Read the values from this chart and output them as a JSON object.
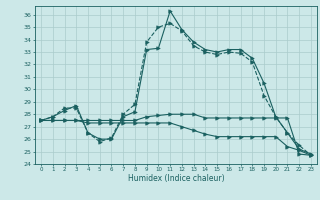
{
  "xlabel": "Humidex (Indice chaleur)",
  "bg_color": "#cce8e8",
  "grid_color": "#aacccc",
  "line_color": "#1a6060",
  "xlim": [
    -0.5,
    23.5
  ],
  "ylim": [
    24,
    36.7
  ],
  "yticks": [
    24,
    25,
    26,
    27,
    28,
    29,
    30,
    31,
    32,
    33,
    34,
    35,
    36
  ],
  "xticks": [
    0,
    1,
    2,
    3,
    4,
    5,
    6,
    7,
    8,
    9,
    10,
    11,
    12,
    13,
    14,
    15,
    16,
    17,
    18,
    19,
    20,
    21,
    22,
    23
  ],
  "series1_x": [
    0,
    1,
    2,
    3,
    4,
    5,
    6,
    7,
    8,
    9,
    10,
    11,
    12,
    13,
    14,
    15,
    16,
    17,
    18,
    19,
    20,
    21,
    22,
    23
  ],
  "series1_y": [
    27.5,
    27.8,
    28.3,
    28.7,
    26.5,
    26.0,
    26.0,
    27.8,
    28.2,
    33.2,
    33.3,
    36.3,
    34.8,
    33.8,
    33.2,
    33.0,
    33.2,
    33.2,
    32.5,
    30.5,
    27.8,
    26.5,
    25.2,
    24.8
  ],
  "series2_x": [
    0,
    1,
    2,
    3,
    4,
    5,
    6,
    7,
    8,
    9,
    10,
    11,
    12,
    13,
    14,
    15,
    16,
    17,
    18,
    19,
    20,
    21,
    22,
    23
  ],
  "series2_y": [
    27.5,
    27.8,
    28.5,
    28.5,
    26.5,
    25.8,
    26.1,
    28.0,
    28.8,
    33.8,
    35.0,
    35.3,
    34.7,
    33.5,
    33.0,
    32.8,
    33.0,
    32.9,
    32.2,
    29.5,
    27.8,
    26.5,
    25.5,
    24.7
  ],
  "series3_x": [
    0,
    1,
    2,
    3,
    4,
    5,
    6,
    7,
    8,
    9,
    10,
    11,
    12,
    13,
    14,
    15,
    16,
    17,
    18,
    19,
    20,
    21,
    22,
    23
  ],
  "series3_y": [
    27.5,
    27.5,
    27.5,
    27.5,
    27.5,
    27.5,
    27.5,
    27.5,
    27.5,
    27.8,
    27.9,
    28.0,
    28.0,
    28.0,
    27.7,
    27.7,
    27.7,
    27.7,
    27.7,
    27.7,
    27.7,
    27.7,
    24.8,
    24.7
  ],
  "series4_x": [
    0,
    1,
    2,
    3,
    4,
    5,
    6,
    7,
    8,
    9,
    10,
    11,
    12,
    13,
    14,
    15,
    16,
    17,
    18,
    19,
    20,
    21,
    22,
    23
  ],
  "series4_y": [
    27.5,
    27.5,
    27.5,
    27.5,
    27.3,
    27.3,
    27.3,
    27.3,
    27.3,
    27.3,
    27.3,
    27.3,
    27.0,
    26.7,
    26.4,
    26.2,
    26.2,
    26.2,
    26.2,
    26.2,
    26.2,
    25.4,
    25.1,
    24.7
  ]
}
